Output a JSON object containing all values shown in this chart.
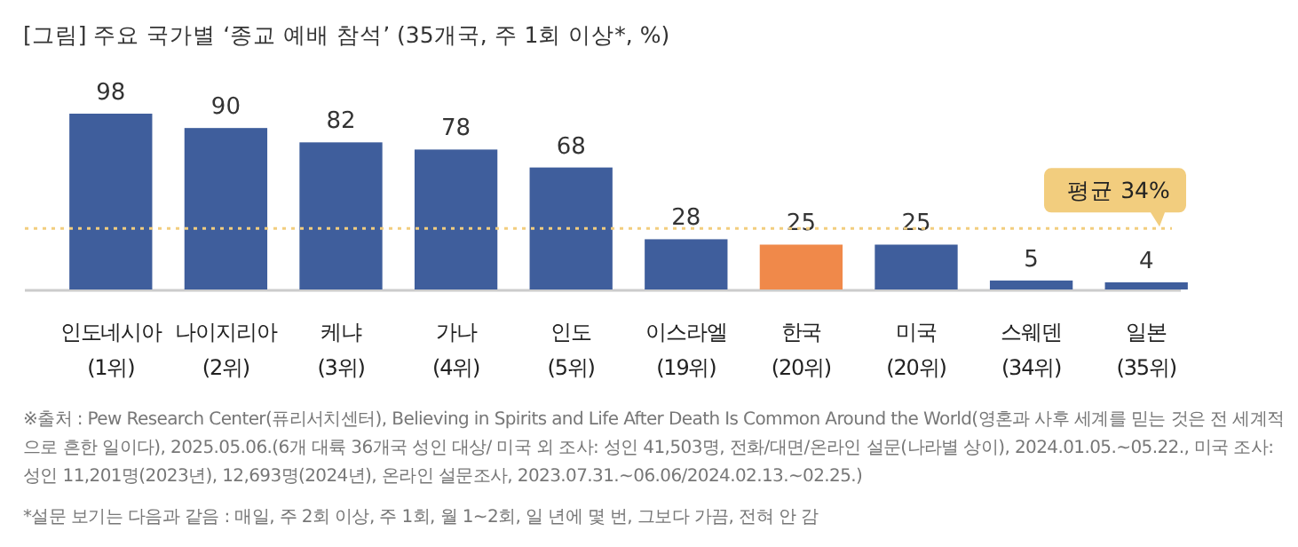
{
  "chart_data": {
    "type": "bar",
    "title": "[그림] 주요 국가별 ‘종교 예배 참석’ (35개국, 주 1회 이상*, %)",
    "categories": [
      "인도네시아\n(1위)",
      "나이지리아\n(2위)",
      "케냐\n(3위)",
      "가나\n(4위)",
      "인도\n(5위)",
      "이스라엘\n(19위)",
      "한국\n(20위)",
      "미국\n(20위)",
      "스웨덴\n(34위)",
      "일본\n(35위)"
    ],
    "values": [
      98,
      90,
      82,
      78,
      68,
      28,
      25,
      25,
      5,
      4
    ],
    "colors": [
      "#3f5e9c",
      "#3f5e9c",
      "#3f5e9c",
      "#3f5e9c",
      "#3f5e9c",
      "#3f5e9c",
      "#f0894a",
      "#3f5e9c",
      "#3f5e9c",
      "#3f5e9c"
    ],
    "data_labels": true,
    "ref_lines": [
      {
        "axis": "y",
        "value": 34,
        "label": "평균 34%",
        "color": "#f2cd7e",
        "line_style": "dotted"
      }
    ],
    "annotations": [
      "※출처 : Pew Research Center(퓨리서치센터), Believing in Spirits and Life After Death Is Common Around the World(영혼과 사후 세계를 믿는 것은 전 세계적으로 흔한 일이다), 2025.05.06.(6개 대륙 36개국 성인 대상/ 미국 외 조사: 성인 41,503명, 전화/대면/온라인 설문(나라별 상이), 2024.01.05.~05.22., 미국 조사: 성인 11,201명(2023년), 12,693명(2024년), 온라인 설문조사, 2023.07.31.~06.06/2024.02.13.~02.25.)",
      "*설문 보기는 다음과 같음 : 매일, 주 2회 이상, 주 1회, 월 1~2회, 일 년에 몇 번, 그보다 가끔, 전혀 안 감"
    ]
  }
}
